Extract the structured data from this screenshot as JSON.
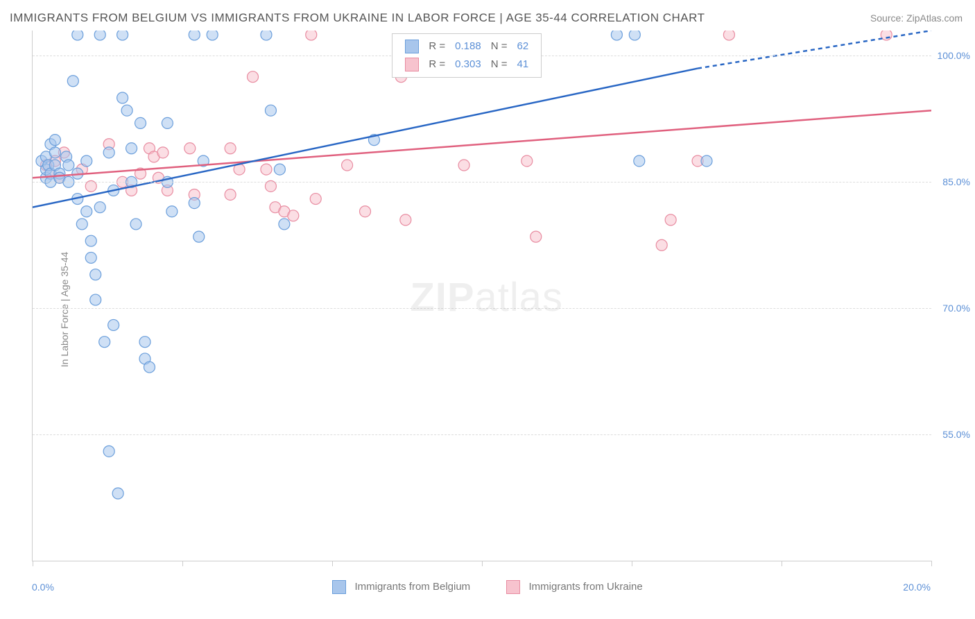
{
  "title": "IMMIGRANTS FROM BELGIUM VS IMMIGRANTS FROM UKRAINE IN LABOR FORCE | AGE 35-44 CORRELATION CHART",
  "source_label": "Source: ZipAtlas.com",
  "ylabel": "In Labor Force | Age 35-44",
  "watermark": "ZIPatlas",
  "chart": {
    "type": "scatter",
    "background_color": "#ffffff",
    "grid_color": "#dddddd",
    "axis_color": "#cccccc",
    "tick_label_color": "#5b8fd6",
    "label_color": "#888888",
    "label_fontsize": 14,
    "tick_fontsize": 14,
    "title_fontsize": 17,
    "marker_radius": 8,
    "marker_opacity": 0.55,
    "xlim": [
      0.0,
      20.0
    ],
    "ylim": [
      40.0,
      103.0
    ],
    "yticks": [
      55.0,
      70.0,
      85.0,
      100.0
    ],
    "ytick_labels": [
      "55.0%",
      "70.0%",
      "85.0%",
      "100.0%"
    ],
    "xticks": [
      0.0,
      3.33,
      6.67,
      10.0,
      13.33,
      16.67,
      20.0
    ],
    "xlim_labels": {
      "left": "0.0%",
      "right": "20.0%"
    },
    "trend_line_width": 2.5,
    "trend_dash": "6,5"
  },
  "series": {
    "belgium": {
      "label": "Immigrants from Belgium",
      "fill": "#a8c6ec",
      "stroke": "#6a9edb",
      "line_color": "#2866c4",
      "R": "0.188",
      "N": "62",
      "trend": {
        "x1": 0.0,
        "y1": 82.0,
        "x2_solid": 14.8,
        "y2_solid": 98.5,
        "x2_dash": 20.0,
        "y2_dash": 103.0
      },
      "points": [
        [
          0.2,
          87.5
        ],
        [
          0.3,
          85.5
        ],
        [
          0.3,
          86.5
        ],
        [
          0.3,
          88.0
        ],
        [
          0.35,
          87.0
        ],
        [
          0.4,
          89.5
        ],
        [
          0.4,
          86.0
        ],
        [
          0.4,
          85.0
        ],
        [
          0.5,
          88.5
        ],
        [
          0.5,
          90.0
        ],
        [
          0.5,
          87.0
        ],
        [
          0.6,
          86.0
        ],
        [
          0.6,
          85.5
        ],
        [
          0.75,
          88.0
        ],
        [
          0.8,
          87.0
        ],
        [
          0.8,
          85.0
        ],
        [
          0.9,
          97.0
        ],
        [
          1.0,
          86.0
        ],
        [
          1.0,
          102.5
        ],
        [
          1.0,
          83.0
        ],
        [
          1.1,
          80.0
        ],
        [
          1.2,
          81.5
        ],
        [
          1.2,
          87.5
        ],
        [
          1.3,
          78.0
        ],
        [
          1.3,
          76.0
        ],
        [
          1.4,
          71.0
        ],
        [
          1.4,
          74.0
        ],
        [
          1.5,
          102.5
        ],
        [
          1.5,
          82.0
        ],
        [
          1.6,
          66.0
        ],
        [
          1.7,
          88.5
        ],
        [
          1.7,
          53.0
        ],
        [
          1.8,
          84.0
        ],
        [
          1.8,
          68.0
        ],
        [
          1.9,
          48.0
        ],
        [
          2.0,
          102.5
        ],
        [
          2.0,
          95.0
        ],
        [
          2.1,
          93.5
        ],
        [
          2.2,
          89.0
        ],
        [
          2.2,
          85.0
        ],
        [
          2.3,
          80.0
        ],
        [
          2.4,
          92.0
        ],
        [
          2.5,
          66.0
        ],
        [
          2.5,
          64.0
        ],
        [
          2.6,
          63.0
        ],
        [
          3.0,
          92.0
        ],
        [
          3.0,
          85.0
        ],
        [
          3.1,
          81.5
        ],
        [
          3.6,
          102.5
        ],
        [
          3.6,
          82.5
        ],
        [
          3.7,
          78.5
        ],
        [
          3.8,
          87.5
        ],
        [
          4.0,
          102.5
        ],
        [
          5.2,
          102.5
        ],
        [
          5.3,
          93.5
        ],
        [
          5.5,
          86.5
        ],
        [
          5.6,
          80.0
        ],
        [
          7.6,
          90.0
        ],
        [
          13.0,
          102.5
        ],
        [
          13.4,
          102.5
        ],
        [
          13.5,
          87.5
        ],
        [
          15.0,
          87.5
        ]
      ]
    },
    "ukraine": {
      "label": "Immigrants from Ukraine",
      "fill": "#f7c3ce",
      "stroke": "#e88ba0",
      "line_color": "#e0607e",
      "R": "0.303",
      "N": "41",
      "trend": {
        "x1": 0.0,
        "y1": 85.5,
        "x2_solid": 20.0,
        "y2_solid": 93.5,
        "x2_dash": 20.0,
        "y2_dash": 93.5
      },
      "points": [
        [
          0.3,
          87.0
        ],
        [
          0.4,
          86.0
        ],
        [
          0.5,
          87.5
        ],
        [
          0.6,
          85.5
        ],
        [
          0.7,
          88.5
        ],
        [
          1.1,
          86.5
        ],
        [
          1.3,
          84.5
        ],
        [
          1.7,
          89.5
        ],
        [
          2.0,
          85.0
        ],
        [
          2.2,
          84.0
        ],
        [
          2.4,
          86.0
        ],
        [
          2.6,
          89.0
        ],
        [
          2.7,
          88.0
        ],
        [
          2.8,
          85.5
        ],
        [
          2.9,
          88.5
        ],
        [
          3.0,
          84.0
        ],
        [
          3.5,
          89.0
        ],
        [
          3.6,
          83.5
        ],
        [
          4.4,
          89.0
        ],
        [
          4.4,
          83.5
        ],
        [
          4.6,
          86.5
        ],
        [
          4.9,
          97.5
        ],
        [
          5.2,
          86.5
        ],
        [
          5.3,
          84.5
        ],
        [
          5.4,
          82.0
        ],
        [
          5.6,
          81.5
        ],
        [
          5.8,
          81.0
        ],
        [
          6.2,
          102.5
        ],
        [
          6.3,
          83.0
        ],
        [
          7.0,
          87.0
        ],
        [
          7.4,
          81.5
        ],
        [
          8.2,
          97.5
        ],
        [
          8.3,
          80.5
        ],
        [
          9.6,
          87.0
        ],
        [
          11.0,
          87.5
        ],
        [
          11.2,
          78.5
        ],
        [
          14.0,
          77.5
        ],
        [
          14.2,
          80.5
        ],
        [
          14.8,
          87.5
        ],
        [
          15.5,
          102.5
        ],
        [
          19.0,
          102.5
        ]
      ]
    }
  },
  "legend_labels": {
    "R": "R",
    "N": "N",
    "eq": "="
  }
}
